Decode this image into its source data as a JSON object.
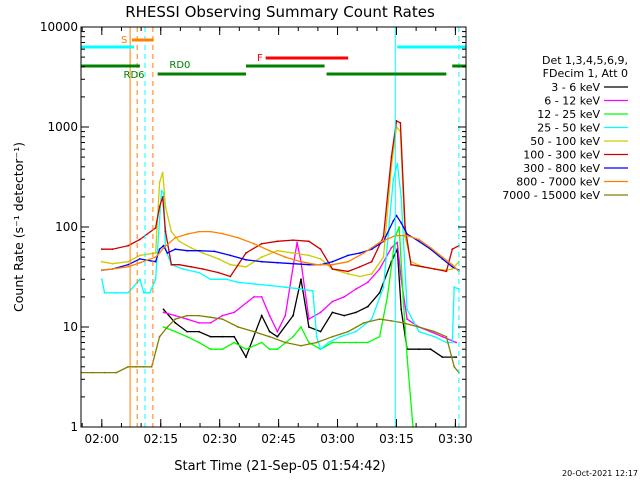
{
  "chart_data": {
    "type": "line",
    "title": "RHESSI Observing Summary Count Rates",
    "xlabel": "Start Time (21-Sep-05 01:54:42)",
    "ylabel": "Count Rate (s⁻¹ detector⁻¹)",
    "yscale": "log",
    "ylim": [
      1,
      10000
    ],
    "xlim_minutes": [
      0,
      98
    ],
    "x_ticks": [
      {
        "t": 5.3,
        "label": "02:00"
      },
      {
        "t": 20.3,
        "label": "02:15"
      },
      {
        "t": 35.3,
        "label": "02:30"
      },
      {
        "t": 50.3,
        "label": "02:45"
      },
      {
        "t": 65.3,
        "label": "03:00"
      },
      {
        "t": 80.3,
        "label": "03:15"
      },
      {
        "t": 95.3,
        "label": "03:30"
      }
    ],
    "y_ticks": [
      {
        "v": 1,
        "label": "1"
      },
      {
        "v": 10,
        "label": "10"
      },
      {
        "v": 100,
        "label": "100"
      },
      {
        "v": 1000,
        "label": "1000"
      },
      {
        "v": 10000,
        "label": "10000"
      }
    ],
    "legend": {
      "header1": "Det 1,3,4,5,6,9,",
      "header2": "FDecim 1, Att 0",
      "position": "right"
    },
    "series": [
      {
        "name": "3 - 6 keV",
        "color": "#000000",
        "points": [
          [
            21,
            15
          ],
          [
            24,
            11
          ],
          [
            27,
            9
          ],
          [
            30,
            9
          ],
          [
            33,
            8
          ],
          [
            36,
            8
          ],
          [
            39,
            8
          ],
          [
            42,
            5
          ],
          [
            46,
            13
          ],
          [
            48,
            9
          ],
          [
            50,
            8
          ],
          [
            54,
            13
          ],
          [
            56,
            30
          ],
          [
            58,
            10
          ],
          [
            61,
            9
          ],
          [
            64,
            14
          ],
          [
            67,
            13
          ],
          [
            70,
            14
          ],
          [
            73,
            16
          ],
          [
            76,
            22
          ],
          [
            79,
            45
          ],
          [
            80.5,
            60
          ],
          [
            81.5,
            15
          ],
          [
            83,
            6
          ],
          [
            86,
            6
          ],
          [
            89,
            6
          ],
          [
            92,
            5
          ],
          [
            95.5,
            5
          ]
        ]
      },
      {
        "name": "6 - 12 keV",
        "color": "#ff00ff",
        "points": [
          [
            21,
            14
          ],
          [
            24,
            13
          ],
          [
            27,
            12
          ],
          [
            30,
            11
          ],
          [
            33,
            11
          ],
          [
            36,
            13
          ],
          [
            39,
            14
          ],
          [
            44,
            20
          ],
          [
            46,
            20
          ],
          [
            48,
            13
          ],
          [
            50,
            9
          ],
          [
            52,
            13
          ],
          [
            54,
            40
          ],
          [
            55,
            70
          ],
          [
            56,
            45
          ],
          [
            58,
            12
          ],
          [
            61,
            14
          ],
          [
            64,
            18
          ],
          [
            67,
            20
          ],
          [
            70,
            24
          ],
          [
            73,
            28
          ],
          [
            76,
            38
          ],
          [
            79,
            62
          ],
          [
            80.5,
            70
          ],
          [
            81.5,
            30
          ],
          [
            83,
            12
          ],
          [
            86,
            10
          ],
          [
            89,
            9
          ],
          [
            92,
            8
          ],
          [
            95.5,
            7
          ]
        ]
      },
      {
        "name": "12 - 25 keV",
        "color": "#00ff00",
        "points": [
          [
            21,
            10
          ],
          [
            24,
            9
          ],
          [
            27,
            8
          ],
          [
            30,
            7
          ],
          [
            33,
            6
          ],
          [
            36,
            6
          ],
          [
            39,
            7
          ],
          [
            42,
            6
          ],
          [
            46,
            7
          ],
          [
            48,
            6
          ],
          [
            50,
            6
          ],
          [
            54,
            8
          ],
          [
            56,
            10
          ],
          [
            58,
            7
          ],
          [
            61,
            6
          ],
          [
            64,
            7
          ],
          [
            67,
            7
          ],
          [
            70,
            7
          ],
          [
            73,
            7
          ],
          [
            76,
            8
          ],
          [
            78,
            20
          ],
          [
            80,
            80
          ],
          [
            81,
            100
          ],
          [
            82,
            20
          ],
          [
            83,
            5
          ],
          [
            84.5,
            1
          ]
        ]
      },
      {
        "name": "25 - 50 keV",
        "color": "#00ffff",
        "points": [
          [
            5.3,
            30
          ],
          [
            6,
            22
          ],
          [
            9,
            22
          ],
          [
            12,
            22
          ],
          [
            15,
            30
          ],
          [
            16,
            22
          ],
          [
            17.5,
            22
          ],
          [
            19,
            30
          ],
          [
            20.5,
            230
          ],
          [
            21,
            220
          ],
          [
            21.5,
            60
          ],
          [
            23,
            42
          ],
          [
            26,
            38
          ],
          [
            30,
            35
          ],
          [
            33,
            30
          ],
          [
            37,
            30
          ],
          [
            40,
            28
          ],
          [
            44,
            27
          ],
          [
            48,
            26
          ],
          [
            52,
            25
          ],
          [
            56,
            24
          ],
          [
            59,
            23
          ],
          [
            60,
            8
          ],
          [
            61,
            6
          ],
          [
            63,
            7
          ],
          [
            66,
            8
          ],
          [
            70,
            9
          ],
          [
            74,
            12
          ],
          [
            77,
            25
          ],
          [
            79.5,
            300
          ],
          [
            80.5,
            430
          ],
          [
            81.5,
            200
          ],
          [
            83,
            15
          ],
          [
            86,
            9
          ],
          [
            90,
            8
          ],
          [
            93,
            7
          ],
          [
            94.5,
            7
          ],
          [
            95,
            25
          ],
          [
            96.2,
            24
          ]
        ]
      },
      {
        "name": "50 - 100 keV",
        "color": "#cccc00",
        "points": [
          [
            5.3,
            45
          ],
          [
            8,
            43
          ],
          [
            12,
            45
          ],
          [
            15,
            52
          ],
          [
            19,
            55
          ],
          [
            20,
            280
          ],
          [
            20.8,
            350
          ],
          [
            21.5,
            160
          ],
          [
            23,
            90
          ],
          [
            25,
            72
          ],
          [
            28,
            62
          ],
          [
            31,
            55
          ],
          [
            35,
            48
          ],
          [
            38,
            42
          ],
          [
            42,
            40
          ],
          [
            46,
            50
          ],
          [
            50,
            58
          ],
          [
            54,
            55
          ],
          [
            58,
            52
          ],
          [
            61,
            48
          ],
          [
            64,
            38
          ],
          [
            68,
            34
          ],
          [
            71,
            32
          ],
          [
            74,
            34
          ],
          [
            77,
            50
          ],
          [
            79,
            400
          ],
          [
            80.3,
            1000
          ],
          [
            81.3,
            900
          ],
          [
            82.5,
            80
          ],
          [
            84,
            45
          ],
          [
            87,
            40
          ],
          [
            90,
            38
          ],
          [
            93,
            37
          ],
          [
            94.5,
            38
          ],
          [
            96.2,
            45
          ]
        ]
      },
      {
        "name": "100 - 300 keV",
        "color": "#cc0000",
        "points": [
          [
            5.3,
            60
          ],
          [
            8,
            60
          ],
          [
            12,
            65
          ],
          [
            15,
            75
          ],
          [
            19,
            98
          ],
          [
            20,
            160
          ],
          [
            20.8,
            200
          ],
          [
            21.5,
            90
          ],
          [
            23,
            42
          ],
          [
            25,
            42
          ],
          [
            28,
            40
          ],
          [
            31,
            38
          ],
          [
            35,
            35
          ],
          [
            38,
            32
          ],
          [
            42,
            55
          ],
          [
            46,
            68
          ],
          [
            50,
            72
          ],
          [
            54,
            74
          ],
          [
            58,
            72
          ],
          [
            61,
            60
          ],
          [
            64,
            38
          ],
          [
            68,
            36
          ],
          [
            71,
            40
          ],
          [
            74,
            45
          ],
          [
            77,
            80
          ],
          [
            79,
            500
          ],
          [
            80.3,
            1150
          ],
          [
            81.3,
            1100
          ],
          [
            82.5,
            100
          ],
          [
            84,
            42
          ],
          [
            87,
            40
          ],
          [
            90,
            38
          ],
          [
            93,
            36
          ],
          [
            94.5,
            60
          ],
          [
            96.2,
            65
          ]
        ]
      },
      {
        "name": "300 - 800 keV",
        "color": "#0000ff",
        "points": [
          [
            5.3,
            37
          ],
          [
            8,
            38
          ],
          [
            12,
            42
          ],
          [
            15,
            48
          ],
          [
            19,
            45
          ],
          [
            20,
            60
          ],
          [
            21,
            65
          ],
          [
            22,
            55
          ],
          [
            24,
            60
          ],
          [
            27,
            58
          ],
          [
            30,
            58
          ],
          [
            34,
            57
          ],
          [
            38,
            52
          ],
          [
            42,
            47
          ],
          [
            46,
            45
          ],
          [
            50,
            44
          ],
          [
            54,
            43
          ],
          [
            58,
            42
          ],
          [
            61,
            42
          ],
          [
            64,
            45
          ],
          [
            68,
            52
          ],
          [
            71,
            55
          ],
          [
            74,
            60
          ],
          [
            77,
            72
          ],
          [
            79.5,
            115
          ],
          [
            80.3,
            130
          ],
          [
            81.5,
            110
          ],
          [
            83,
            85
          ],
          [
            86,
            72
          ],
          [
            89,
            60
          ],
          [
            92,
            48
          ],
          [
            94.5,
            40
          ],
          [
            96.2,
            37
          ]
        ]
      },
      {
        "name": "800 - 7000 keV",
        "color": "#ff8000",
        "points": [
          [
            5.3,
            37
          ],
          [
            8,
            38
          ],
          [
            12,
            40
          ],
          [
            15,
            44
          ],
          [
            19,
            50
          ],
          [
            20,
            55
          ],
          [
            21,
            62
          ],
          [
            24,
            78
          ],
          [
            27,
            85
          ],
          [
            30,
            90
          ],
          [
            33,
            90
          ],
          [
            36,
            86
          ],
          [
            40,
            78
          ],
          [
            44,
            68
          ],
          [
            48,
            58
          ],
          [
            52,
            50
          ],
          [
            56,
            45
          ],
          [
            60,
            42
          ],
          [
            64,
            42
          ],
          [
            68,
            45
          ],
          [
            72,
            55
          ],
          [
            76,
            70
          ],
          [
            80,
            82
          ],
          [
            83,
            82
          ],
          [
            86,
            75
          ],
          [
            89,
            62
          ],
          [
            92,
            50
          ],
          [
            94.5,
            42
          ],
          [
            96.2,
            36
          ]
        ]
      },
      {
        "name": "7000 - 15000 keV",
        "color": "#808000",
        "points": [
          [
            0,
            3.5
          ],
          [
            3,
            3.5
          ],
          [
            6,
            3.5
          ],
          [
            9,
            3.5
          ],
          [
            12,
            4
          ],
          [
            14,
            4
          ],
          [
            16,
            4
          ],
          [
            18,
            4
          ],
          [
            20,
            8
          ],
          [
            22,
            10
          ],
          [
            24,
            12
          ],
          [
            27,
            13
          ],
          [
            30,
            13
          ],
          [
            33,
            12.5
          ],
          [
            36,
            12
          ],
          [
            40,
            10
          ],
          [
            44,
            9
          ],
          [
            48,
            8
          ],
          [
            52,
            7
          ],
          [
            56,
            6.5
          ],
          [
            60,
            7
          ],
          [
            64,
            8
          ],
          [
            68,
            9
          ],
          [
            72,
            11
          ],
          [
            76,
            12
          ],
          [
            79,
            11.5
          ],
          [
            82,
            11
          ],
          [
            86,
            10
          ],
          [
            90,
            9
          ],
          [
            93,
            8
          ],
          [
            95,
            4
          ],
          [
            96.2,
            3.5
          ]
        ]
      }
    ],
    "annotations": {
      "attenuator_bar_label": "S",
      "flare_bar_label": "F",
      "rd0_label": "RD0",
      "rd6_label": "RD6"
    }
  },
  "footer": {
    "timestamp": "20-Oct-2021 12:17"
  }
}
